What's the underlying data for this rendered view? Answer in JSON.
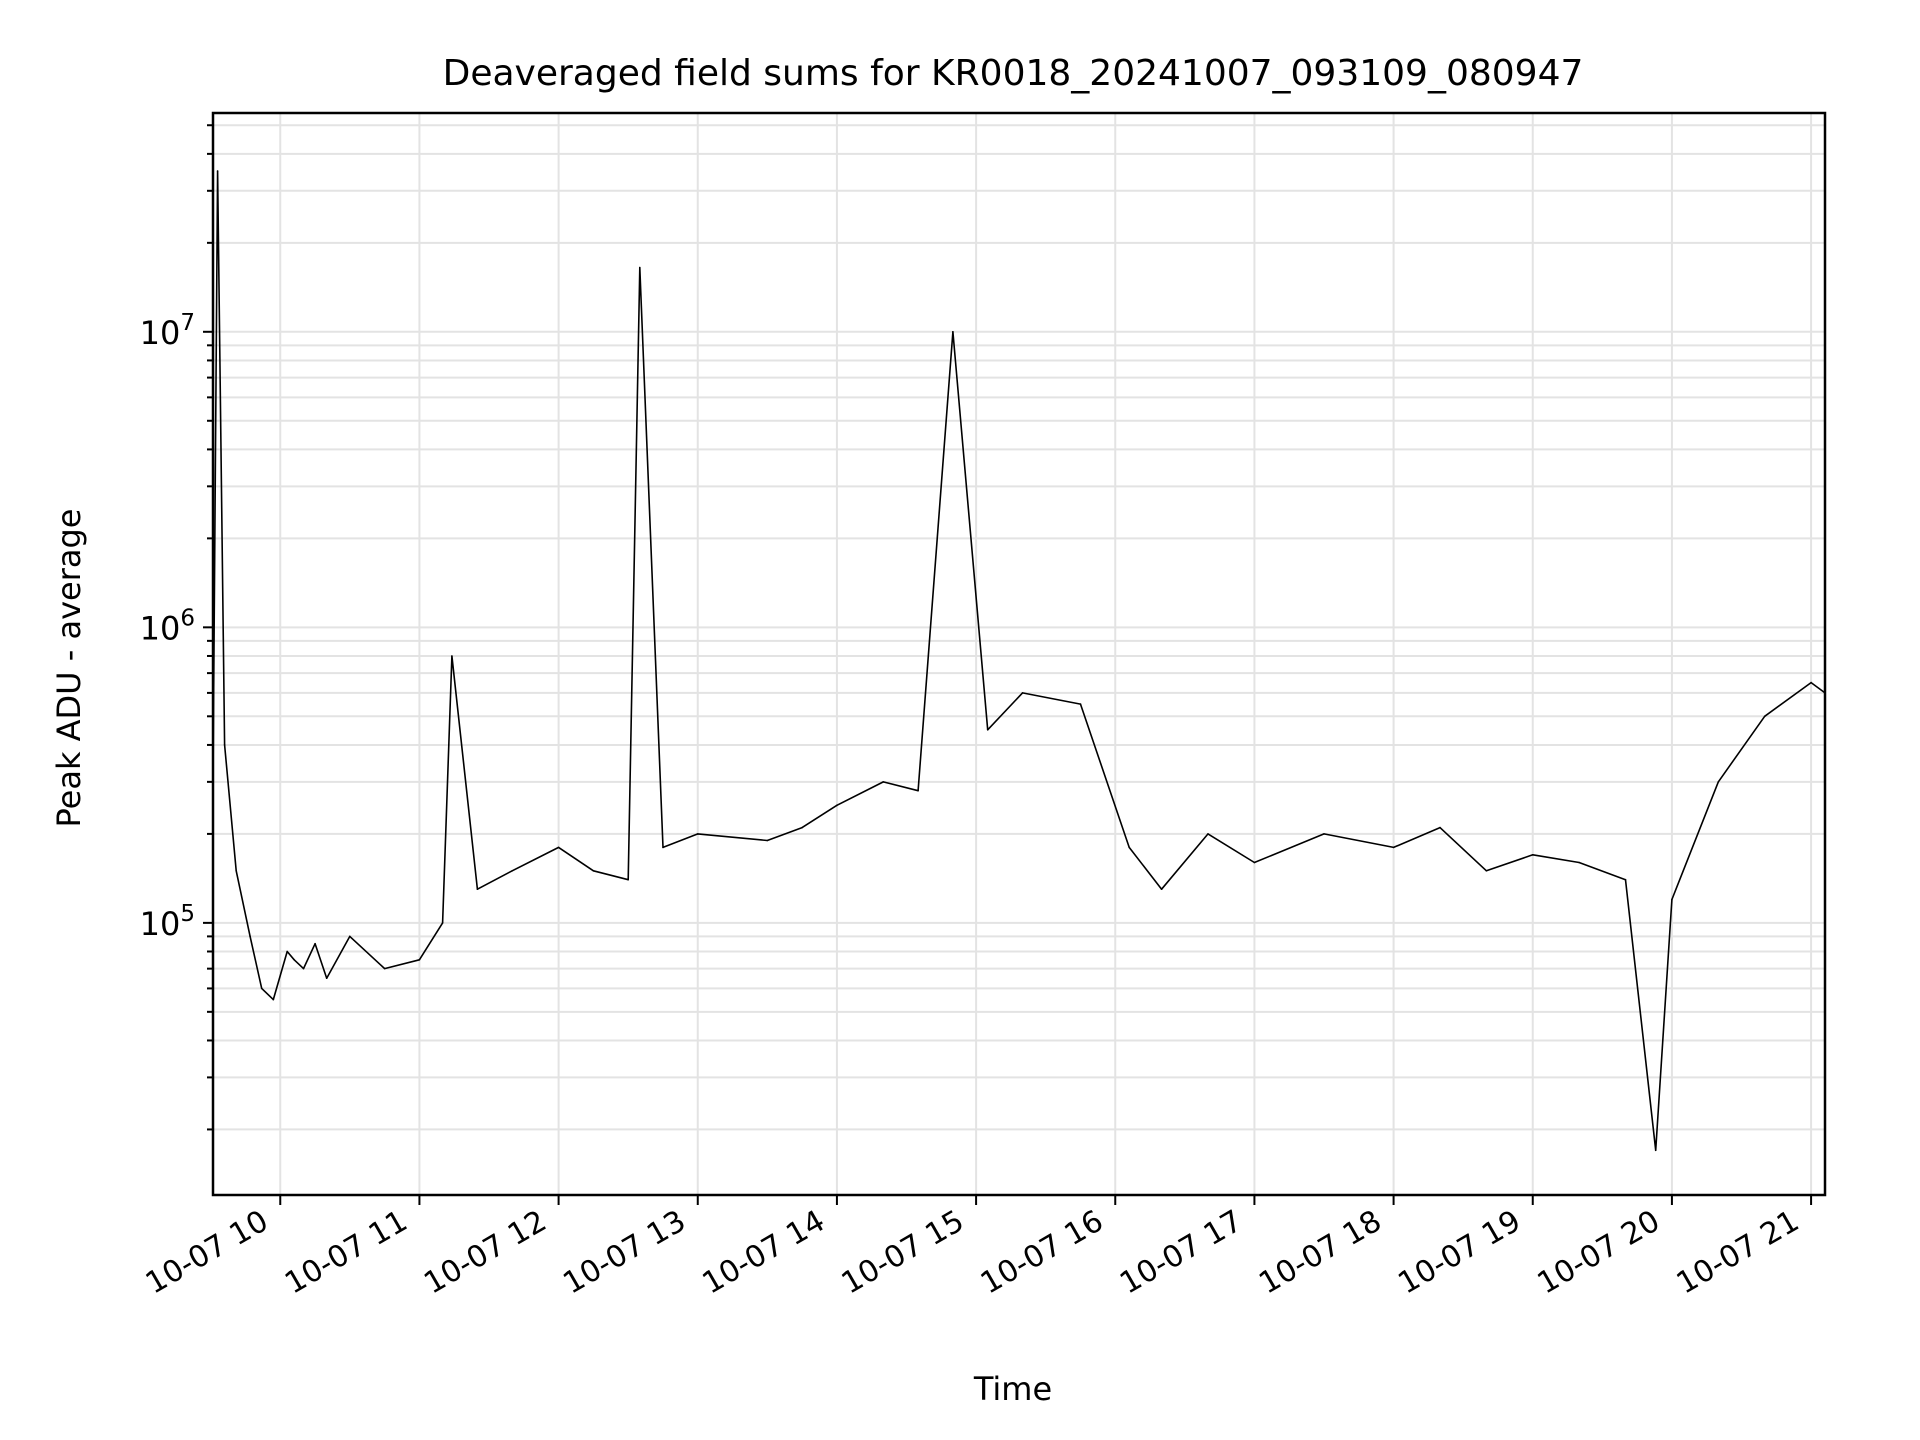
{
  "chart_data": {
    "type": "line",
    "title": "Deaveraged field sums for KR0018_20241007_093109_080947",
    "xlabel": "Time",
    "ylabel": "Peak ADU - average",
    "y_scale": "log",
    "ylim": [
      12000,
      55000000
    ],
    "xlim": [
      "2024-10-07 09:31",
      "2024-10-07 21:06"
    ],
    "grid": true,
    "legend": "none",
    "line_color": "#000000",
    "grid_color": "#e3e3e3",
    "x_ticks": [
      {
        "at": "2024-10-07 10:00",
        "label": "10-07 10"
      },
      {
        "at": "2024-10-07 11:00",
        "label": "10-07 11"
      },
      {
        "at": "2024-10-07 12:00",
        "label": "10-07 12"
      },
      {
        "at": "2024-10-07 13:00",
        "label": "10-07 13"
      },
      {
        "at": "2024-10-07 14:00",
        "label": "10-07 14"
      },
      {
        "at": "2024-10-07 15:00",
        "label": "10-07 15"
      },
      {
        "at": "2024-10-07 16:00",
        "label": "10-07 16"
      },
      {
        "at": "2024-10-07 17:00",
        "label": "10-07 17"
      },
      {
        "at": "2024-10-07 18:00",
        "label": "10-07 18"
      },
      {
        "at": "2024-10-07 19:00",
        "label": "10-07 19"
      },
      {
        "at": "2024-10-07 20:00",
        "label": "10-07 20"
      },
      {
        "at": "2024-10-07 21:00",
        "label": "10-07 21"
      }
    ],
    "y_ticks": [
      {
        "value": 100000,
        "base": "10",
        "exp": "5"
      },
      {
        "value": 1000000,
        "base": "10",
        "exp": "6"
      },
      {
        "value": 10000000,
        "base": "10",
        "exp": "7"
      }
    ],
    "series": [
      {
        "x": [
          "2024-10-07 09:31",
          "2024-10-07 09:33",
          "2024-10-07 09:36",
          "2024-10-07 09:41",
          "2024-10-07 09:47",
          "2024-10-07 09:52",
          "2024-10-07 09:57",
          "2024-10-07 10:03",
          "2024-10-07 10:06",
          "2024-10-07 10:10",
          "2024-10-07 10:15",
          "2024-10-07 10:20",
          "2024-10-07 10:30",
          "2024-10-07 10:45",
          "2024-10-07 11:00",
          "2024-10-07 11:10",
          "2024-10-07 11:14",
          "2024-10-07 11:25",
          "2024-10-07 11:40",
          "2024-10-07 12:00",
          "2024-10-07 12:15",
          "2024-10-07 12:30",
          "2024-10-07 12:35",
          "2024-10-07 12:45",
          "2024-10-07 13:00",
          "2024-10-07 13:30",
          "2024-10-07 13:45",
          "2024-10-07 14:00",
          "2024-10-07 14:20",
          "2024-10-07 14:35",
          "2024-10-07 14:50",
          "2024-10-07 15:05",
          "2024-10-07 15:20",
          "2024-10-07 15:45",
          "2024-10-07 16:06",
          "2024-10-07 16:20",
          "2024-10-07 16:40",
          "2024-10-07 17:00",
          "2024-10-07 17:30",
          "2024-10-07 18:00",
          "2024-10-07 18:20",
          "2024-10-07 18:40",
          "2024-10-07 19:00",
          "2024-10-07 19:20",
          "2024-10-07 19:40",
          "2024-10-07 19:53",
          "2024-10-07 20:00",
          "2024-10-07 20:20",
          "2024-10-07 20:40",
          "2024-10-07 21:00",
          "2024-10-07 21:06"
        ],
        "y": [
          300000,
          35000000,
          400000,
          150000,
          90000,
          60000,
          55000,
          80000,
          75000,
          70000,
          85000,
          65000,
          90000,
          70000,
          75000,
          100000,
          800000,
          130000,
          150000,
          180000,
          150000,
          140000,
          16500000,
          180000,
          200000,
          190000,
          210000,
          250000,
          300000,
          280000,
          10000000,
          450000,
          600000,
          550000,
          180000,
          130000,
          200000,
          160000,
          200000,
          180000,
          210000,
          150000,
          170000,
          160000,
          140000,
          17000,
          120000,
          300000,
          500000,
          650000,
          600000
        ]
      }
    ]
  }
}
